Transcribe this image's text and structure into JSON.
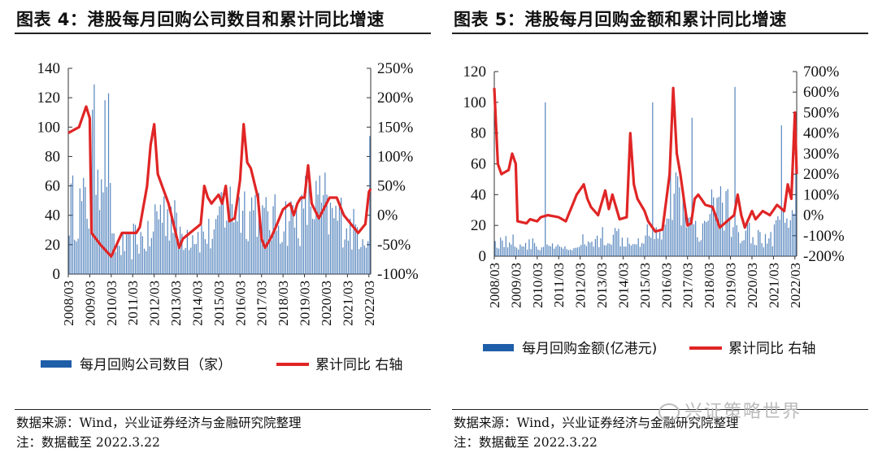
{
  "colors": {
    "bar": "#1f5ea8",
    "line": "#e02525"
  },
  "left": {
    "title": "图表 4：港股每月回购公司数目和累计同比增速",
    "source": "数据来源：Wind，兴业证券经济与金融研究院整理",
    "note": "注：数据截至 2022.3.22",
    "legend": {
      "bar": "每月回购公司数目（家）",
      "line": "累计同比 右轴"
    }
  },
  "right": {
    "title": "图表 5：港股每月回购金额和累计同比增速",
    "source": "数据来源：Wind，兴业证券经济与金融研究院整理",
    "note": "注：数据截至 2022.3.22",
    "legend": {
      "bar": "每月回购金额(亿港元)",
      "line": "累计同比 右轴"
    }
  },
  "watermark": "兴证策略世界",
  "chart_data": [
    {
      "type": "bar+line",
      "title": "港股每月回购公司数目和累计同比增速",
      "x_start": "2008/03",
      "x_end": "2022/03",
      "frequency": "monthly",
      "x_tick_labels": [
        "2008/03",
        "2009/03",
        "2010/03",
        "2011/03",
        "2012/03",
        "2013/03",
        "2014/03",
        "2015/03",
        "2016/03",
        "2017/03",
        "2018/03",
        "2019/03",
        "2020/03",
        "2021/03",
        "2022/03"
      ],
      "y_left": {
        "label": "每月回购公司数目（家）",
        "lim": [
          0,
          140
        ],
        "ticks": [
          0,
          20,
          40,
          60,
          80,
          100,
          120,
          140
        ]
      },
      "y_right": {
        "label": "累计同比",
        "lim": [
          -100,
          250
        ],
        "ticks": [
          "-100%",
          "-50%",
          "0%",
          "50%",
          "100%",
          "150%",
          "200%",
          "250%"
        ],
        "tick_values": [
          -100,
          -50,
          0,
          50,
          100,
          150,
          200,
          250
        ]
      },
      "bar_series": {
        "name": "每月回购公司数目（家）",
        "axis": "left",
        "annual_levels": [
          48,
          90,
          20,
          25,
          45,
          30,
          28,
          48,
          48,
          38,
          40,
          50,
          40,
          32,
          80
        ]
      },
      "line_series": {
        "name": "累计同比",
        "axis": "right",
        "unit": "%",
        "points": [
          [
            0,
            140
          ],
          [
            3,
            145
          ],
          [
            6,
            150
          ],
          [
            10,
            185
          ],
          [
            12,
            165
          ],
          [
            13,
            -30
          ],
          [
            18,
            -50
          ],
          [
            24,
            -70
          ],
          [
            30,
            -30
          ],
          [
            38,
            -30
          ],
          [
            40,
            -20
          ],
          [
            44,
            50
          ],
          [
            46,
            120
          ],
          [
            48,
            155
          ],
          [
            50,
            70
          ],
          [
            56,
            20
          ],
          [
            60,
            -30
          ],
          [
            62,
            -55
          ],
          [
            64,
            -40
          ],
          [
            70,
            -25
          ],
          [
            74,
            -15
          ],
          [
            76,
            50
          ],
          [
            78,
            30
          ],
          [
            80,
            20
          ],
          [
            84,
            35
          ],
          [
            86,
            20
          ],
          [
            88,
            50
          ],
          [
            90,
            -10
          ],
          [
            93,
            -5
          ],
          [
            96,
            60
          ],
          [
            98,
            155
          ],
          [
            100,
            90
          ],
          [
            102,
            80
          ],
          [
            106,
            30
          ],
          [
            108,
            -40
          ],
          [
            110,
            -55
          ],
          [
            113,
            -40
          ],
          [
            116,
            -20
          ],
          [
            120,
            10
          ],
          [
            124,
            20
          ],
          [
            126,
            0
          ],
          [
            128,
            20
          ],
          [
            130,
            30
          ],
          [
            132,
            30
          ],
          [
            134,
            85
          ],
          [
            136,
            20
          ],
          [
            140,
            -5
          ],
          [
            146,
            30
          ],
          [
            150,
            30
          ],
          [
            154,
            0
          ],
          [
            158,
            -15
          ],
          [
            162,
            -30
          ],
          [
            166,
            -15
          ],
          [
            168,
            40
          ],
          [
            169,
            45
          ]
        ]
      }
    },
    {
      "type": "bar+line",
      "title": "港股每月回购金额和累计同比增速",
      "x_start": "2008/03",
      "x_end": "2022/03",
      "frequency": "monthly",
      "x_tick_labels": [
        "2008/03",
        "2009/03",
        "2010/03",
        "2011/03",
        "2012/03",
        "2013/03",
        "2014/03",
        "2015/03",
        "2016/03",
        "2017/03",
        "2018/03",
        "2019/03",
        "2020/03",
        "2021/03",
        "2022/03"
      ],
      "y_left": {
        "label": "每月回购金额(亿港元)",
        "lim": [
          0,
          120
        ],
        "ticks": [
          0,
          20,
          40,
          60,
          80,
          100,
          120
        ]
      },
      "y_right": {
        "label": "累计同比",
        "lim": [
          -200,
          700
        ],
        "ticks": [
          "-200%",
          "-100%",
          "0%",
          "100%",
          "200%",
          "300%",
          "400%",
          "500%",
          "600%",
          "700%"
        ],
        "tick_values": [
          -200,
          -100,
          0,
          100,
          200,
          300,
          400,
          500,
          600,
          700
        ]
      },
      "bar_series": {
        "name": "每月回购金额(亿港元)",
        "axis": "left",
        "annual_levels": [
          10,
          8,
          6,
          5,
          10,
          14,
          12,
          18,
          40,
          20,
          35,
          18,
          12,
          22,
          50
        ],
        "spikes": [
          [
            28,
            100
          ],
          [
            88,
            100
          ],
          [
            110,
            90
          ],
          [
            134,
            110
          ],
          [
            160,
            85
          ]
        ]
      },
      "line_series": {
        "name": "累计同比",
        "axis": "right",
        "unit": "%",
        "points": [
          [
            0,
            620
          ],
          [
            2,
            250
          ],
          [
            4,
            200
          ],
          [
            8,
            220
          ],
          [
            10,
            300
          ],
          [
            12,
            250
          ],
          [
            13,
            -30
          ],
          [
            18,
            -40
          ],
          [
            20,
            -20
          ],
          [
            24,
            -30
          ],
          [
            26,
            -10
          ],
          [
            30,
            0
          ],
          [
            36,
            -10
          ],
          [
            40,
            -30
          ],
          [
            46,
            100
          ],
          [
            50,
            150
          ],
          [
            52,
            80
          ],
          [
            54,
            40
          ],
          [
            58,
            0
          ],
          [
            62,
            120
          ],
          [
            64,
            30
          ],
          [
            66,
            100
          ],
          [
            70,
            -20
          ],
          [
            74,
            -10
          ],
          [
            76,
            400
          ],
          [
            78,
            150
          ],
          [
            80,
            80
          ],
          [
            84,
            20
          ],
          [
            86,
            -30
          ],
          [
            90,
            -80
          ],
          [
            94,
            -70
          ],
          [
            98,
            200
          ],
          [
            100,
            620
          ],
          [
            102,
            300
          ],
          [
            104,
            200
          ],
          [
            108,
            -50
          ],
          [
            110,
            -40
          ],
          [
            112,
            80
          ],
          [
            114,
            100
          ],
          [
            118,
            50
          ],
          [
            122,
            40
          ],
          [
            126,
            -60
          ],
          [
            130,
            -30
          ],
          [
            134,
            0
          ],
          [
            136,
            100
          ],
          [
            138,
            0
          ],
          [
            140,
            -60
          ],
          [
            144,
            20
          ],
          [
            146,
            -20
          ],
          [
            150,
            20
          ],
          [
            154,
            0
          ],
          [
            158,
            50
          ],
          [
            162,
            20
          ],
          [
            164,
            150
          ],
          [
            166,
            80
          ],
          [
            168,
            500
          ],
          [
            169,
            200
          ]
        ]
      }
    }
  ]
}
